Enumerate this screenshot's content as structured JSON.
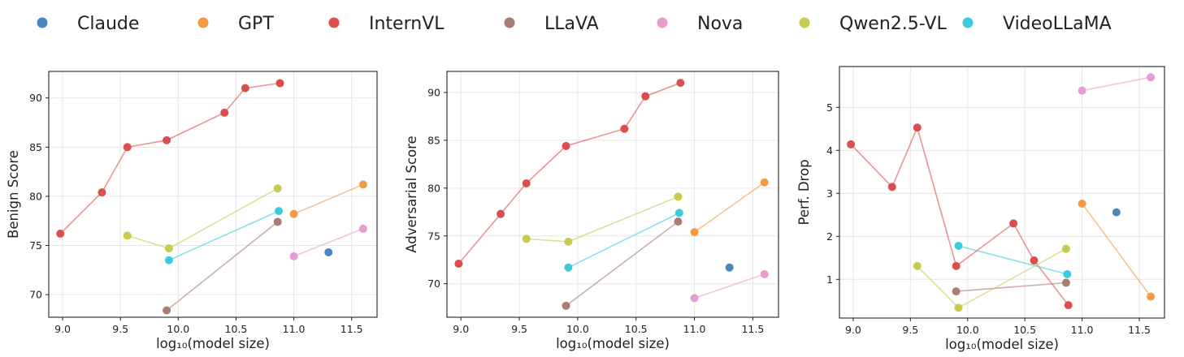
{
  "legend": {
    "entries": [
      {
        "name": "Claude",
        "color": "#4a86c0"
      },
      {
        "name": "GPT",
        "color": "#f49a45"
      },
      {
        "name": "InternVL",
        "color": "#db4e4e"
      },
      {
        "name": "LLaVA",
        "color": "#a97d72"
      },
      {
        "name": "Nova",
        "color": "#ea9ad2"
      },
      {
        "name": "Qwen2.5-VL",
        "color": "#c7cb50"
      },
      {
        "name": "VideoLLaMA",
        "color": "#3ccbdc"
      }
    ]
  },
  "chart_data": [
    {
      "type": "scatter",
      "title": "",
      "xlabel": "log₁₀(model size)",
      "ylabel": "Benign Score",
      "xlim": [
        8.88,
        11.72
      ],
      "ylim": [
        67.7,
        92.7
      ],
      "xticks": [
        9.0,
        9.5,
        10.0,
        10.5,
        11.0,
        11.5
      ],
      "xtick_labels": [
        "9.0",
        "9.5",
        "10.0",
        "10.5",
        "11.0",
        "11.5"
      ],
      "yticks": [
        70,
        75,
        80,
        85,
        90
      ],
      "ytick_labels": [
        "70",
        "75",
        "80",
        "85",
        "90"
      ],
      "grid": true,
      "series": [
        {
          "name": "Claude",
          "points": [
            [
              11.3,
              74.3
            ]
          ]
        },
        {
          "name": "GPT",
          "points": [
            [
              11.0,
              78.2
            ],
            [
              11.6,
              81.2
            ]
          ]
        },
        {
          "name": "InternVL",
          "points": [
            [
              8.98,
              76.2
            ],
            [
              9.34,
              80.4
            ],
            [
              9.56,
              85.0
            ],
            [
              9.9,
              85.7
            ],
            [
              10.4,
              88.5
            ],
            [
              10.58,
              91.0
            ],
            [
              10.88,
              91.5
            ]
          ]
        },
        {
          "name": "LLaVA",
          "points": [
            [
              9.9,
              68.4
            ],
            [
              10.86,
              77.4
            ]
          ]
        },
        {
          "name": "Nova",
          "points": [
            [
              11.0,
              73.9
            ],
            [
              11.6,
              76.7
            ]
          ]
        },
        {
          "name": "Qwen2.5-VL",
          "points": [
            [
              9.56,
              76.0
            ],
            [
              9.92,
              74.7
            ],
            [
              10.86,
              80.8
            ]
          ]
        },
        {
          "name": "VideoLLaMA",
          "points": [
            [
              9.92,
              73.5
            ],
            [
              10.87,
              78.5
            ]
          ]
        }
      ]
    },
    {
      "type": "scatter",
      "title": "",
      "xlabel": "log₁₀(model size)",
      "ylabel": "Adversarial Score",
      "xlim": [
        8.88,
        11.72
      ],
      "ylim": [
        66.5,
        92.2
      ],
      "xticks": [
        9.0,
        9.5,
        10.0,
        10.5,
        11.0,
        11.5
      ],
      "xtick_labels": [
        "9.0",
        "9.5",
        "10.0",
        "10.5",
        "11.0",
        "11.5"
      ],
      "yticks": [
        70,
        75,
        80,
        85,
        90
      ],
      "ytick_labels": [
        "70",
        "75",
        "80",
        "85",
        "90"
      ],
      "grid": true,
      "series": [
        {
          "name": "Claude",
          "points": [
            [
              11.3,
              71.7
            ]
          ]
        },
        {
          "name": "GPT",
          "points": [
            [
              11.0,
              75.4
            ],
            [
              11.6,
              80.6
            ]
          ]
        },
        {
          "name": "InternVL",
          "points": [
            [
              8.98,
              72.1
            ],
            [
              9.34,
              77.3
            ],
            [
              9.56,
              80.5
            ],
            [
              9.9,
              84.4
            ],
            [
              10.4,
              86.2
            ],
            [
              10.58,
              89.6
            ],
            [
              10.88,
              91.0
            ]
          ]
        },
        {
          "name": "LLaVA",
          "points": [
            [
              9.9,
              67.7
            ],
            [
              10.86,
              76.5
            ]
          ]
        },
        {
          "name": "Nova",
          "points": [
            [
              11.0,
              68.5
            ],
            [
              11.6,
              71.0
            ]
          ]
        },
        {
          "name": "Qwen2.5-VL",
          "points": [
            [
              9.56,
              74.7
            ],
            [
              9.92,
              74.4
            ],
            [
              10.86,
              79.1
            ]
          ]
        },
        {
          "name": "VideoLLaMA",
          "points": [
            [
              9.92,
              71.7
            ],
            [
              10.87,
              77.4
            ]
          ]
        }
      ]
    },
    {
      "type": "scatter",
      "title": "",
      "xlabel": "log₁₀(model size)",
      "ylabel": "Perf. Drop",
      "xlim": [
        8.88,
        11.72
      ],
      "ylim": [
        0.1,
        5.95
      ],
      "xticks": [
        9.0,
        9.5,
        10.0,
        10.5,
        11.0,
        11.5
      ],
      "xtick_labels": [
        "9.0",
        "9.5",
        "10.0",
        "10.5",
        "11.0",
        "11.5"
      ],
      "yticks": [
        1,
        2,
        3,
        4,
        5
      ],
      "ytick_labels": [
        "1",
        "2",
        "3",
        "4",
        "5"
      ],
      "grid": true,
      "series": [
        {
          "name": "Claude",
          "points": [
            [
              11.3,
              2.56
            ]
          ]
        },
        {
          "name": "GPT",
          "points": [
            [
              11.0,
              2.76
            ],
            [
              11.6,
              0.6
            ]
          ]
        },
        {
          "name": "InternVL",
          "points": [
            [
              8.98,
              4.14
            ],
            [
              9.34,
              3.15
            ],
            [
              9.56,
              4.53
            ],
            [
              9.9,
              1.31
            ],
            [
              10.4,
              2.3
            ],
            [
              10.58,
              1.44
            ],
            [
              10.88,
              0.4
            ]
          ]
        },
        {
          "name": "LLaVA",
          "points": [
            [
              9.9,
              0.72
            ],
            [
              10.86,
              0.92
            ]
          ]
        },
        {
          "name": "Nova",
          "points": [
            [
              11.0,
              5.39
            ],
            [
              11.6,
              5.7
            ]
          ]
        },
        {
          "name": "Qwen2.5-VL",
          "points": [
            [
              9.56,
              1.31
            ],
            [
              9.92,
              0.34
            ],
            [
              10.86,
              1.71
            ]
          ]
        },
        {
          "name": "VideoLLaMA",
          "points": [
            [
              9.92,
              1.78
            ],
            [
              10.87,
              1.12
            ]
          ]
        }
      ]
    }
  ]
}
